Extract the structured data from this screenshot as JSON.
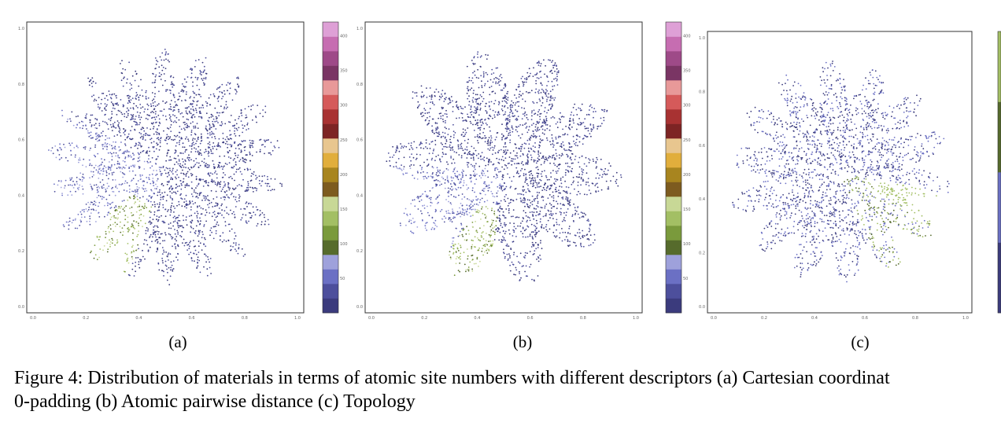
{
  "figure": {
    "caption_line1": "Figure 4: Distribution of materials in terms of atomic site numbers with different descriptors (a) Cartesian coordinat",
    "caption_line2": "0-padding (b) Atomic pairwise distance (c) Topology"
  },
  "panels": [
    {
      "label": "(a)"
    },
    {
      "label": "(b)"
    },
    {
      "label": "(c)"
    }
  ],
  "chart_data": [
    {
      "type": "scatter",
      "title": "",
      "x_ticks": [
        "0.0",
        "0.2",
        "0.4",
        "0.6",
        "0.8",
        "1.0"
      ],
      "y_ticks": [
        "0.0",
        "0.2",
        "0.4",
        "0.6",
        "0.8",
        "1.0"
      ],
      "xlim": [
        0,
        1
      ],
      "ylim": [
        0,
        1
      ],
      "colorbar_ticks": [
        "50",
        "100",
        "150",
        "200",
        "250",
        "300",
        "350",
        "400"
      ],
      "colormap": [
        "#3b3b7d",
        "#4d4f9c",
        "#6b70c4",
        "#9ea1db",
        "#566b2c",
        "#7a9a3c",
        "#a3bf64",
        "#c8d896",
        "#7d5b1f",
        "#a8851f",
        "#e1ae3c",
        "#e8c68f",
        "#7d2424",
        "#a83232",
        "#d55a5a",
        "#e89999",
        "#7a3564",
        "#9e4a88",
        "#c66db1",
        "#dea0d6"
      ]
    },
    {
      "type": "scatter",
      "title": "",
      "x_ticks": [
        "0.0",
        "0.2",
        "0.4",
        "0.6",
        "0.8",
        "1.0"
      ],
      "y_ticks": [
        "0.0",
        "0.2",
        "0.4",
        "0.6",
        "0.8",
        "1.0"
      ],
      "xlim": [
        0,
        1
      ],
      "ylim": [
        0,
        1
      ],
      "colorbar_ticks": [
        "50",
        "100",
        "150",
        "200",
        "250",
        "300",
        "350",
        "400"
      ],
      "colormap": [
        "#3b3b7d",
        "#4d4f9c",
        "#6b70c4",
        "#9ea1db",
        "#566b2c",
        "#7a9a3c",
        "#a3bf64",
        "#c8d896",
        "#7d5b1f",
        "#a8851f",
        "#e1ae3c",
        "#e8c68f",
        "#7d2424",
        "#a83232",
        "#d55a5a",
        "#e89999",
        "#7a3564",
        "#9e4a88",
        "#c66db1",
        "#dea0d6"
      ]
    },
    {
      "type": "scatter",
      "title": "",
      "x_ticks": [
        "0.0",
        "0.2",
        "0.4",
        "0.6",
        "0.8",
        "1.0"
      ],
      "y_ticks": [
        "0.0",
        "0.2",
        "0.4",
        "0.6",
        "0.8",
        "1.0"
      ],
      "xlim": [
        0,
        1
      ],
      "ylim": [
        0,
        1
      ],
      "colormap": [
        "#3b3b7d",
        "#6b70c4",
        "#566b2c",
        "#a3bf64"
      ]
    }
  ]
}
